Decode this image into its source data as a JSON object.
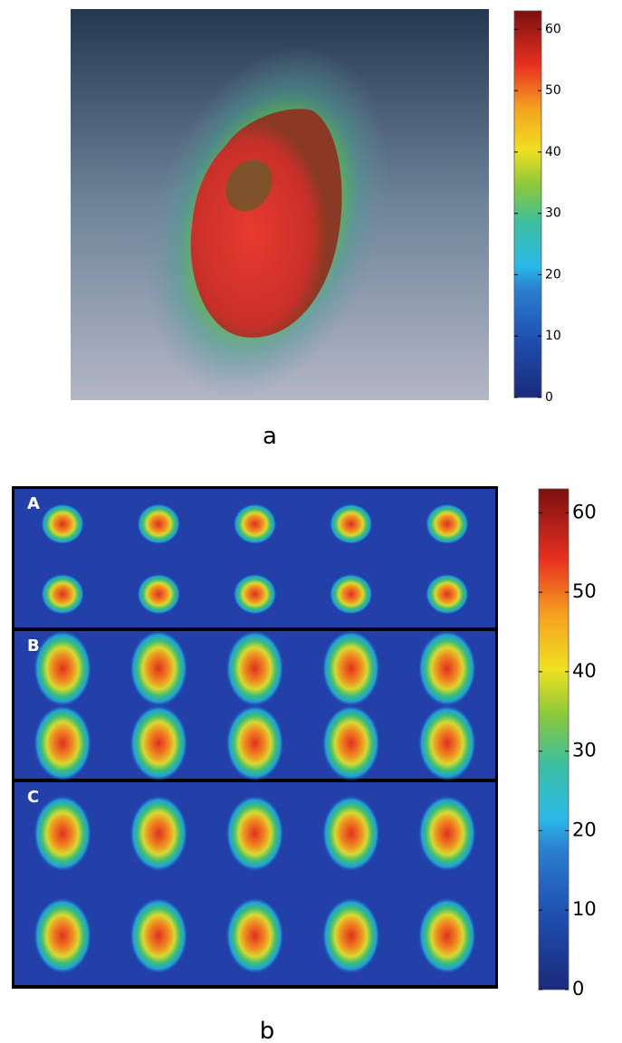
{
  "figure": {
    "panels": [
      {
        "label": "a",
        "colorbar": {
          "lim": [
            0,
            63
          ],
          "ticks": [
            0,
            10,
            20,
            30,
            40,
            50,
            60
          ]
        }
      },
      {
        "label": "b",
        "groups": [
          "A",
          "B",
          "C"
        ],
        "colorbar": {
          "lim": [
            0,
            63
          ],
          "ticks": [
            0,
            10,
            20,
            30,
            40,
            50,
            60
          ]
        }
      }
    ]
  }
}
